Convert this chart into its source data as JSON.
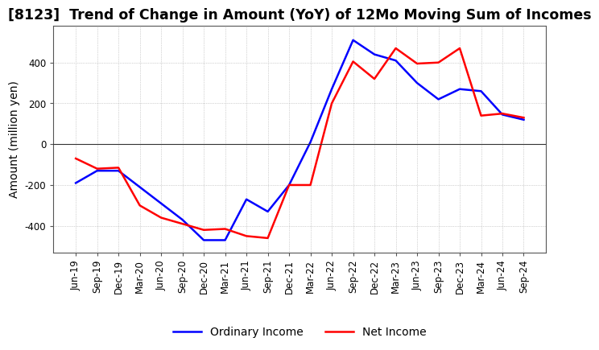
{
  "title": "[8123]  Trend of Change in Amount (YoY) of 12Mo Moving Sum of Incomes",
  "ylabel": "Amount (million yen)",
  "x_labels": [
    "Jun-19",
    "Sep-19",
    "Dec-19",
    "Mar-20",
    "Jun-20",
    "Sep-20",
    "Dec-20",
    "Mar-21",
    "Jun-21",
    "Sep-21",
    "Dec-21",
    "Mar-22",
    "Jun-22",
    "Sep-22",
    "Dec-22",
    "Mar-23",
    "Jun-23",
    "Sep-23",
    "Dec-23",
    "Mar-24",
    "Jun-24",
    "Sep-24"
  ],
  "ordinary_income": [
    -190,
    -130,
    -130,
    -210,
    -290,
    -370,
    -470,
    -470,
    -270,
    -330,
    -200,
    10,
    270,
    510,
    440,
    410,
    300,
    220,
    270,
    260,
    145,
    120
  ],
  "net_income": [
    -70,
    -120,
    -115,
    -300,
    -360,
    -390,
    -420,
    -415,
    -450,
    -460,
    -200,
    -200,
    200,
    405,
    320,
    470,
    395,
    400,
    470,
    140,
    150,
    130
  ],
  "ordinary_color": "#0000ff",
  "net_color": "#ff0000",
  "ylim": [
    -530,
    580
  ],
  "yticks": [
    -400,
    -200,
    0,
    200,
    400
  ],
  "background_color": "#ffffff",
  "grid_color": "#aaaaaa",
  "title_fontsize": 12.5,
  "label_fontsize": 10,
  "tick_fontsize": 8.5
}
